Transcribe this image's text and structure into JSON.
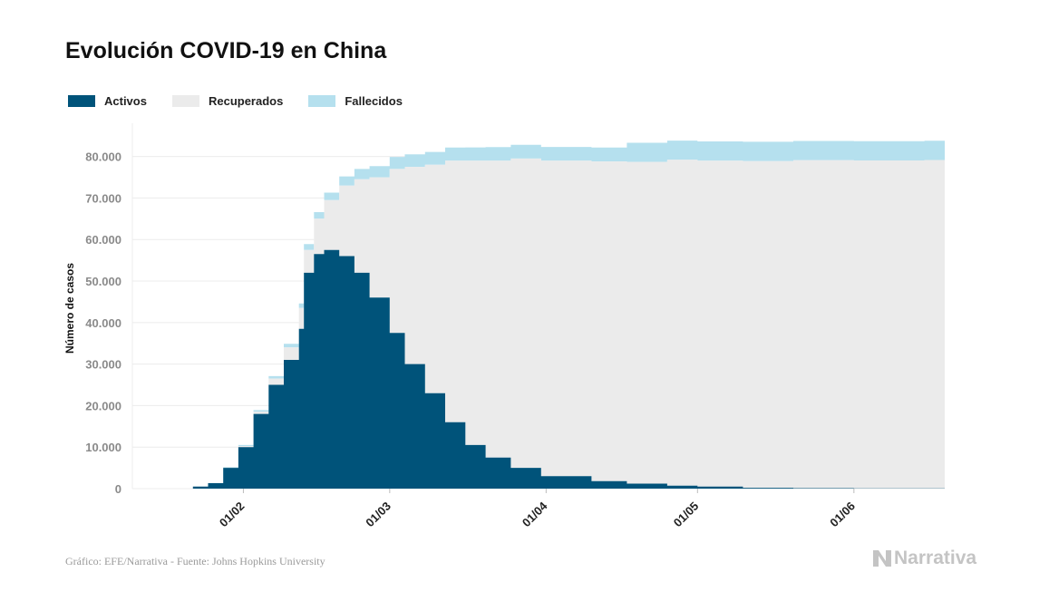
{
  "title": "Evolución COVID-19 en China",
  "source": "Gráfico: EFE/Narrativa - Fuente: Johns Hopkins University",
  "logo_text": "Narrativa",
  "colors": {
    "activos": "#00537a",
    "recuperados": "#ebebeb",
    "fallecidos": "#b5e0ee",
    "grid": "#ececec"
  },
  "chart_data": {
    "type": "area",
    "stacked": true,
    "title": "Evolución COVID-19 en China",
    "ylabel": "Número de casos",
    "xlabel": "",
    "ylim": [
      0,
      88000
    ],
    "yticks": [
      0,
      10000,
      20000,
      30000,
      40000,
      50000,
      60000,
      70000,
      80000
    ],
    "ytick_labels": [
      "0",
      "10.000",
      "20.000",
      "30.000",
      "40.000",
      "50.000",
      "60.000",
      "70.000",
      "80.000"
    ],
    "xticks": [
      "01/02",
      "01/03",
      "01/04",
      "01/05",
      "01/06"
    ],
    "xtick_dates": [
      "2020-02-01",
      "2020-03-01",
      "2020-04-01",
      "2020-05-01",
      "2020-06-01"
    ],
    "grid": true,
    "legend_position": "top-left",
    "dates": [
      "2020-01-22",
      "2020-01-25",
      "2020-01-28",
      "2020-01-31",
      "2020-02-03",
      "2020-02-06",
      "2020-02-09",
      "2020-02-12",
      "2020-02-13",
      "2020-02-15",
      "2020-02-17",
      "2020-02-20",
      "2020-02-23",
      "2020-02-26",
      "2020-03-01",
      "2020-03-04",
      "2020-03-08",
      "2020-03-12",
      "2020-03-16",
      "2020-03-20",
      "2020-03-25",
      "2020-03-31",
      "2020-04-10",
      "2020-04-17",
      "2020-04-25",
      "2020-05-01",
      "2020-05-10",
      "2020-05-20",
      "2020-06-01",
      "2020-06-15"
    ],
    "series": [
      {
        "name": "Activos",
        "values": [
          500,
          1300,
          5000,
          10000,
          18000,
          25000,
          31000,
          38500,
          52000,
          56500,
          57500,
          56000,
          52000,
          46000,
          37500,
          30000,
          23000,
          16000,
          10500,
          7500,
          5000,
          3000,
          1800,
          1200,
          700,
          500,
          200,
          100,
          50,
          50
        ]
      },
      {
        "name": "Recuperados",
        "values": [
          30,
          40,
          100,
          250,
          500,
          1500,
          3000,
          5000,
          5500,
          8500,
          12000,
          17000,
          22500,
          29000,
          39500,
          47500,
          55000,
          63000,
          68500,
          71500,
          74500,
          76000,
          77000,
          77500,
          78500,
          78500,
          78700,
          79000,
          79000,
          79100
        ]
      },
      {
        "name": "Fallecidos",
        "values": [
          20,
          50,
          130,
          250,
          400,
          600,
          900,
          1100,
          1400,
          1600,
          1800,
          2200,
          2500,
          2700,
          2900,
          3000,
          3100,
          3150,
          3200,
          3250,
          3300,
          3300,
          3350,
          4600,
          4630,
          4640,
          4640,
          4640,
          4640,
          4640
        ]
      }
    ]
  }
}
